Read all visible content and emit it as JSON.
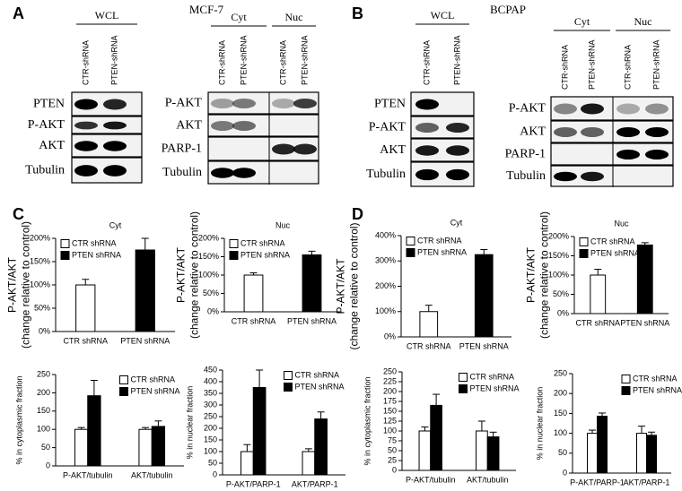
{
  "blots": [
    {
      "panel": "A",
      "cell_line": "MCF-7",
      "wcl": {
        "title": "WCL",
        "lanes": [
          "CTR-shRNA",
          "PTEN-shRNA"
        ],
        "rows": [
          "PTEN",
          "P-AKT",
          "AKT",
          "Tubulin"
        ]
      },
      "fractions": {
        "groups": [
          "Cyt",
          "Nuc"
        ],
        "lanes": [
          "CTR-shRNA",
          "PTEN-shRNA",
          "CTR-shRNA",
          "PTEN-shRNA"
        ],
        "rows": [
          "P-AKT",
          "AKT",
          "PARP-1",
          "Tubulin"
        ]
      }
    },
    {
      "panel": "B",
      "cell_line": "BCPAP",
      "wcl": {
        "title": "WCL",
        "lanes": [
          "CTR-shRNA",
          "PTEN-shRNA"
        ],
        "rows": [
          "PTEN",
          "P-AKT",
          "AKT",
          "Tubulin"
        ]
      },
      "fractions": {
        "groups": [
          "Cyt",
          "Nuc"
        ],
        "lanes": [
          "CTR-shRNA",
          "PTEN-shRNA",
          "CTR-shRNA",
          "PTEN-shRNA"
        ],
        "rows": [
          "P-AKT",
          "AKT",
          "PARP-1",
          "Tubulin"
        ]
      }
    }
  ],
  "chart_panels": [
    "C",
    "D"
  ],
  "chart_data": [
    {
      "type": "bar",
      "title": "Cyt",
      "ylabel": [
        "P-AKT/AKT",
        "(change relative to control)"
      ],
      "categories": [
        "CTR shRNA",
        "PTEN shRNA"
      ],
      "values": [
        100,
        175
      ],
      "errors": [
        12,
        25
      ],
      "colors": [
        "#ffffff",
        "#000000"
      ],
      "legend": [
        "CTR shRNA",
        "PTEN shRNA"
      ],
      "legend_position": "upper left",
      "ylim": [
        0,
        200
      ],
      "yticks": [
        {
          "value": 0,
          "label": "0%"
        },
        {
          "value": 50,
          "label": "50%"
        },
        {
          "value": 100,
          "label": "100%"
        },
        {
          "value": 150,
          "label": "150%"
        },
        {
          "value": 200,
          "label": "200%"
        }
      ]
    },
    {
      "type": "bar",
      "title": "Nuc",
      "ylabel": [
        "P-AKT/AKT",
        "(change relative to control)"
      ],
      "categories": [
        "CTR shRNA",
        "PTEN shRNA"
      ],
      "values": [
        100,
        155
      ],
      "errors": [
        6,
        10
      ],
      "colors": [
        "#ffffff",
        "#000000"
      ],
      "legend": [
        "CTR shRNA",
        "PTEN shRNA"
      ],
      "legend_position": "upper left",
      "ylim": [
        0,
        200
      ],
      "yticks": [
        {
          "value": 0,
          "label": "0%"
        },
        {
          "value": 50,
          "label": "50%"
        },
        {
          "value": 100,
          "label": "100%"
        },
        {
          "value": 150,
          "label": "150%"
        },
        {
          "value": 200,
          "label": "200%"
        }
      ]
    },
    {
      "type": "bar",
      "title": "Cyt",
      "ylabel": [
        "P-AKT/AKT",
        "(change relative to control)"
      ],
      "categories": [
        "CTR shRNA",
        "PTEN shRNA"
      ],
      "values": [
        100,
        325
      ],
      "errors": [
        25,
        20
      ],
      "colors": [
        "#ffffff",
        "#000000"
      ],
      "legend": [
        "CTR shRNA",
        "PTEN shRNA"
      ],
      "legend_position": "upper left",
      "ylim": [
        0,
        400
      ],
      "yticks": [
        {
          "value": 0,
          "label": "0%"
        },
        {
          "value": 100,
          "label": "100%"
        },
        {
          "value": 200,
          "label": "200%"
        },
        {
          "value": 300,
          "label": "300%"
        },
        {
          "value": 400,
          "label": "400%"
        }
      ]
    },
    {
      "type": "bar",
      "title": "Nuc",
      "ylabel": [
        "P-AKT/AKT",
        "(change relative to control)"
      ],
      "categories": [
        "CTR shRNA",
        "PTEN shRNA"
      ],
      "values": [
        100,
        178
      ],
      "errors": [
        15,
        6
      ],
      "colors": [
        "#ffffff",
        "#000000"
      ],
      "legend": [
        "CTR shRNA",
        "PTEN shRNA"
      ],
      "legend_position": "upper left",
      "ylim": [
        0,
        200
      ],
      "yticks": [
        {
          "value": 0,
          "label": "0%"
        },
        {
          "value": 50,
          "label": "50%"
        },
        {
          "value": 100,
          "label": "100%"
        },
        {
          "value": 150,
          "label": "150%"
        },
        {
          "value": 200,
          "label": "200%"
        }
      ]
    },
    {
      "type": "grouped_bar",
      "ylabel": [
        "% in cytoplasmic fraction"
      ],
      "categories": [
        "P-AKT/tubulin",
        "AKT/tubulin"
      ],
      "series": [
        {
          "name": "CTR shRNA",
          "color": "#ffffff",
          "values": [
            100,
            100
          ],
          "errors": [
            5,
            5
          ]
        },
        {
          "name": "PTEN shRNA",
          "color": "#000000",
          "values": [
            192,
            108
          ],
          "errors": [
            42,
            15
          ]
        }
      ],
      "legend_position": "upper right",
      "ylim": [
        0,
        250
      ],
      "yticks": [
        0,
        50,
        100,
        150,
        200,
        250
      ]
    },
    {
      "type": "grouped_bar",
      "ylabel": [
        "% in nuclear fraction"
      ],
      "categories": [
        "P-AKT/PARP-1",
        "AKT/PARP-1"
      ],
      "series": [
        {
          "name": "CTR shRNA",
          "color": "#ffffff",
          "values": [
            100,
            100
          ],
          "errors": [
            30,
            12
          ]
        },
        {
          "name": "PTEN shRNA",
          "color": "#000000",
          "values": [
            375,
            240
          ],
          "errors": [
            75,
            30
          ]
        }
      ],
      "legend_position": "upper right",
      "ylim": [
        0,
        450
      ],
      "yticks": [
        0,
        50,
        100,
        150,
        200,
        250,
        300,
        350,
        400,
        450
      ]
    },
    {
      "type": "grouped_bar",
      "ylabel": [
        "% in cytoplasmic fraction"
      ],
      "categories": [
        "P-AKT/tubulin",
        "AKT/tubulin"
      ],
      "series": [
        {
          "name": "CTR shRNA",
          "color": "#ffffff",
          "values": [
            100,
            100
          ],
          "errors": [
            10,
            25
          ]
        },
        {
          "name": "PTEN shRNA",
          "color": "#000000",
          "values": [
            165,
            85
          ],
          "errors": [
            28,
            12
          ]
        }
      ],
      "legend_position": "upper right",
      "ylim": [
        0,
        250
      ],
      "yticks": [
        0,
        25,
        50,
        75,
        100,
        125,
        150,
        175,
        200,
        225,
        250
      ]
    },
    {
      "type": "grouped_bar",
      "ylabel": [
        "% in nuclear fraction"
      ],
      "categories": [
        "P-AKT/PARP-1",
        "AKT/PARP-1"
      ],
      "series": [
        {
          "name": "CTR shRNA",
          "color": "#ffffff",
          "values": [
            100,
            100
          ],
          "errors": [
            8,
            18
          ]
        },
        {
          "name": "PTEN shRNA",
          "color": "#000000",
          "values": [
            143,
            95
          ],
          "errors": [
            8,
            8
          ]
        }
      ],
      "legend_position": "upper right",
      "ylim": [
        0,
        250
      ],
      "yticks": [
        0,
        50,
        100,
        150,
        200,
        250
      ]
    }
  ]
}
